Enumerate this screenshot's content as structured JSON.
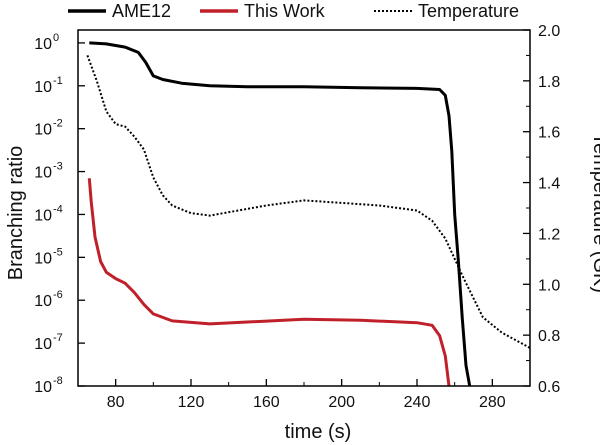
{
  "chart_data": {
    "type": "line",
    "xlabel": "time (s)",
    "ylabel_left": "Branching ratio",
    "ylabel_right": "Temperature (GK)",
    "xlim": [
      60,
      300
    ],
    "ylim_left": [
      1e-08,
      2
    ],
    "ylim_right": [
      0.6,
      2.0
    ],
    "y_left_scale": "log",
    "x_ticks": [
      80,
      120,
      160,
      200,
      240,
      280
    ],
    "x_tick_labels": [
      "80",
      "120",
      "160",
      "200",
      "240",
      "280"
    ],
    "y_left_ticks": [
      {
        "exp": -8,
        "base": "10",
        "sup": "-8"
      },
      {
        "exp": -7,
        "base": "10",
        "sup": "-7"
      },
      {
        "exp": -6,
        "base": "10",
        "sup": "-6"
      },
      {
        "exp": -5,
        "base": "10",
        "sup": "-5"
      },
      {
        "exp": -4,
        "base": "10",
        "sup": "-4"
      },
      {
        "exp": -3,
        "base": "10",
        "sup": "-3"
      },
      {
        "exp": -2,
        "base": "10",
        "sup": "-2"
      },
      {
        "exp": -1,
        "base": "10",
        "sup": "-1"
      },
      {
        "exp": 0,
        "base": "10",
        "sup": "0"
      }
    ],
    "y_right_ticks": [
      0.6,
      0.8,
      1.0,
      1.2,
      1.4,
      1.6,
      1.8,
      2.0
    ],
    "y_right_tick_labels": [
      "0.6",
      "0.8",
      "1.0",
      "1.2",
      "1.4",
      "1.6",
      "1.8",
      "2.0"
    ],
    "legend_position": "top",
    "series": [
      {
        "name": "AME12",
        "axis": "left",
        "color": "#000000",
        "style": "solid",
        "points": [
          [
            66,
            1.0
          ],
          [
            75,
            0.95
          ],
          [
            85,
            0.8
          ],
          [
            92,
            0.6
          ],
          [
            96,
            0.35
          ],
          [
            100,
            0.17
          ],
          [
            105,
            0.14
          ],
          [
            115,
            0.115
          ],
          [
            130,
            0.1
          ],
          [
            150,
            0.095
          ],
          [
            180,
            0.095
          ],
          [
            210,
            0.09
          ],
          [
            240,
            0.087
          ],
          [
            252,
            0.082
          ],
          [
            255,
            0.06
          ],
          [
            257,
            0.02
          ],
          [
            258.5,
            0.003
          ],
          [
            260,
            0.0001
          ],
          [
            262,
            8e-06
          ],
          [
            264,
            4e-07
          ],
          [
            266,
            3e-08
          ],
          [
            268,
            1e-08
          ]
        ]
      },
      {
        "name": "This Work",
        "axis": "left",
        "color": "#c0202a",
        "style": "solid",
        "points": [
          [
            66,
            0.0007
          ],
          [
            67,
            0.0002
          ],
          [
            69,
            3e-05
          ],
          [
            72,
            8e-06
          ],
          [
            75,
            4.5e-06
          ],
          [
            80,
            3.2e-06
          ],
          [
            85,
            2.5e-06
          ],
          [
            90,
            1.5e-06
          ],
          [
            95,
            8e-07
          ],
          [
            100,
            4.8e-07
          ],
          [
            110,
            3.3e-07
          ],
          [
            130,
            2.8e-07
          ],
          [
            150,
            3.1e-07
          ],
          [
            180,
            3.6e-07
          ],
          [
            210,
            3.4e-07
          ],
          [
            240,
            3e-07
          ],
          [
            248,
            2.6e-07
          ],
          [
            252,
            1.5e-07
          ],
          [
            255,
            5e-08
          ],
          [
            257,
            1e-08
          ]
        ]
      },
      {
        "name": "Temperature",
        "axis": "right",
        "color": "#000000",
        "style": "dotted",
        "points": [
          [
            65,
            1.9
          ],
          [
            70,
            1.8
          ],
          [
            75,
            1.68
          ],
          [
            80,
            1.63
          ],
          [
            85,
            1.62
          ],
          [
            90,
            1.58
          ],
          [
            95,
            1.53
          ],
          [
            100,
            1.42
          ],
          [
            105,
            1.35
          ],
          [
            110,
            1.31
          ],
          [
            120,
            1.28
          ],
          [
            130,
            1.27
          ],
          [
            145,
            1.29
          ],
          [
            160,
            1.31
          ],
          [
            180,
            1.33
          ],
          [
            200,
            1.32
          ],
          [
            220,
            1.31
          ],
          [
            240,
            1.29
          ],
          [
            248,
            1.25
          ],
          [
            255,
            1.18
          ],
          [
            265,
            1.02
          ],
          [
            275,
            0.87
          ],
          [
            285,
            0.81
          ],
          [
            300,
            0.75
          ]
        ]
      }
    ]
  }
}
